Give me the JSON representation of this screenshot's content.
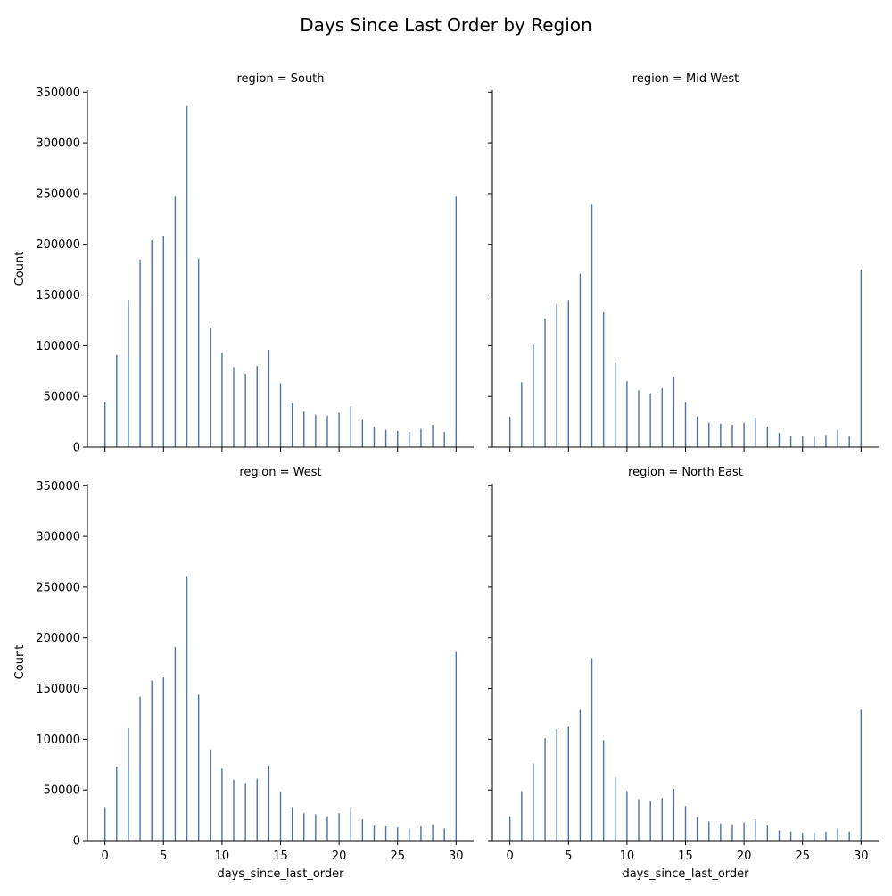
{
  "chart_data": {
    "type": "bar",
    "title": "Days Since Last Order by Region",
    "xlabel": "days_since_last_order",
    "ylabel": "Count",
    "xlim": [
      -1.5,
      31.5
    ],
    "ylim": [
      0,
      352000
    ],
    "xticks": [
      0,
      5,
      10,
      15,
      20,
      25,
      30
    ],
    "yticks": [
      0,
      50000,
      100000,
      150000,
      200000,
      250000,
      300000,
      350000
    ],
    "bar_color": "#4c72b0",
    "grid": false,
    "x": [
      0,
      1,
      2,
      3,
      4,
      5,
      6,
      7,
      8,
      9,
      10,
      11,
      12,
      13,
      14,
      15,
      16,
      17,
      18,
      19,
      20,
      21,
      22,
      23,
      24,
      25,
      26,
      27,
      28,
      29,
      30
    ],
    "panels": [
      {
        "label": "region = South",
        "values": [
          44000,
          91000,
          145000,
          185000,
          204000,
          208000,
          247000,
          336000,
          186000,
          118000,
          93000,
          79000,
          72000,
          80000,
          96000,
          63000,
          43000,
          35000,
          32000,
          31000,
          34000,
          40000,
          27000,
          20000,
          17000,
          16000,
          15000,
          18000,
          22000,
          15000,
          247000
        ]
      },
      {
        "label": "region = Mid West",
        "values": [
          30000,
          64000,
          101000,
          127000,
          141000,
          145000,
          171000,
          239000,
          133000,
          83000,
          65000,
          56000,
          53000,
          58000,
          69000,
          44000,
          30000,
          24000,
          23000,
          22000,
          24000,
          29000,
          20000,
          14000,
          11000,
          11000,
          10000,
          12000,
          17000,
          11000,
          175000
        ]
      },
      {
        "label": "region = West",
        "values": [
          33000,
          73000,
          111000,
          142000,
          158000,
          161000,
          191000,
          261000,
          144000,
          90000,
          71000,
          60000,
          57000,
          61000,
          74000,
          48000,
          33000,
          27000,
          26000,
          24000,
          27000,
          32000,
          21000,
          15000,
          14000,
          13000,
          12000,
          14000,
          16000,
          12000,
          186000
        ]
      },
      {
        "label": "region = North East",
        "values": [
          24000,
          49000,
          76000,
          101000,
          110000,
          112000,
          129000,
          180000,
          99000,
          62000,
          49000,
          41000,
          39000,
          42000,
          51000,
          34000,
          23000,
          19000,
          17000,
          16000,
          18000,
          21000,
          15000,
          10000,
          9000,
          8000,
          8000,
          9000,
          12000,
          9000,
          129000
        ]
      }
    ]
  }
}
